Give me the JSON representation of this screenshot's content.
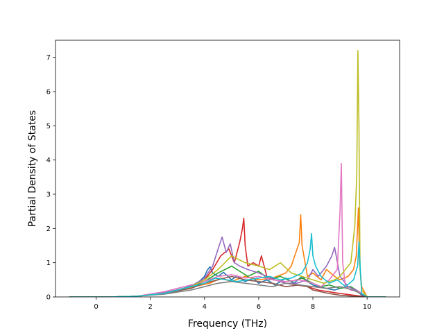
{
  "chart_data": {
    "type": "line",
    "title": "",
    "xlabel": "Frequency (THz)",
    "ylabel": "Partial Density of States",
    "xlim": [
      -1.5,
      11.2
    ],
    "ylim": [
      0,
      7.5
    ],
    "xticks": [
      0,
      2,
      4,
      6,
      8,
      10
    ],
    "yticks": [
      0,
      1,
      2,
      3,
      4,
      5,
      6,
      7
    ],
    "grid": false,
    "legend": "none",
    "series": [
      {
        "color": "#1f77b4",
        "x": [
          -1.0,
          0.5,
          1.5,
          2.5,
          3.0,
          3.5,
          3.8,
          4.0,
          4.1,
          4.2,
          4.3,
          4.5,
          4.7,
          5.0,
          5.2,
          5.5,
          5.8,
          6.0,
          6.3,
          6.6,
          7.0,
          7.3,
          7.6,
          7.8,
          8.0,
          8.2,
          8.5,
          8.8,
          9.0,
          9.3,
          9.6,
          9.8,
          10.0,
          10.7
        ],
        "y": [
          0,
          0,
          0.02,
          0.12,
          0.2,
          0.32,
          0.45,
          0.6,
          0.78,
          0.88,
          0.7,
          0.6,
          0.72,
          0.5,
          0.62,
          0.45,
          0.55,
          0.4,
          0.5,
          0.35,
          0.55,
          0.4,
          0.6,
          0.45,
          0.35,
          0.3,
          0.25,
          0.2,
          0.25,
          0.3,
          0.2,
          0.05,
          0,
          0
        ]
      },
      {
        "color": "#ff7f0e",
        "x": [
          -1.0,
          0.5,
          1.5,
          2.5,
          3.5,
          4.2,
          4.6,
          5.0,
          5.5,
          6.0,
          6.5,
          7.0,
          7.2,
          7.5,
          7.55,
          7.6,
          7.8,
          8.0,
          8.3,
          8.5,
          8.8,
          9.0,
          9.3,
          9.5,
          9.6,
          9.68,
          9.72,
          9.8,
          10.0,
          10.7
        ],
        "y": [
          0,
          0,
          0.02,
          0.1,
          0.28,
          0.4,
          0.55,
          0.45,
          0.6,
          0.5,
          0.55,
          0.7,
          0.9,
          1.6,
          2.4,
          1.5,
          0.6,
          0.7,
          0.5,
          0.8,
          0.6,
          0.5,
          0.6,
          0.8,
          1.2,
          2.6,
          1.0,
          0.3,
          0,
          0
        ]
      },
      {
        "color": "#2ca02c",
        "x": [
          -1.0,
          0.5,
          1.5,
          2.5,
          3.5,
          4.0,
          4.5,
          5.0,
          5.3,
          5.6,
          6.0,
          6.4,
          6.8,
          7.2,
          7.6,
          8.0,
          8.3,
          8.6,
          9.0,
          9.4,
          9.7,
          10.0,
          10.7
        ],
        "y": [
          0,
          0,
          0.02,
          0.1,
          0.3,
          0.45,
          0.7,
          0.9,
          0.75,
          0.6,
          0.75,
          0.5,
          0.6,
          0.45,
          0.55,
          0.4,
          0.3,
          0.35,
          0.25,
          0.3,
          0.15,
          0,
          0
        ]
      },
      {
        "color": "#d62728",
        "x": [
          -1.0,
          0.5,
          1.5,
          2.5,
          3.5,
          4.0,
          4.3,
          4.6,
          4.9,
          5.1,
          5.3,
          5.4,
          5.45,
          5.5,
          5.6,
          5.8,
          6.0,
          6.1,
          6.3,
          6.6,
          7.0,
          7.4,
          7.8,
          8.2,
          8.6,
          9.0,
          9.5,
          10.0,
          10.7
        ],
        "y": [
          0,
          0,
          0.02,
          0.1,
          0.3,
          0.5,
          0.8,
          1.2,
          1.4,
          1.0,
          1.6,
          2.0,
          2.3,
          1.5,
          0.9,
          1.0,
          0.9,
          1.2,
          0.6,
          0.5,
          0.4,
          0.35,
          0.3,
          0.2,
          0.15,
          0.1,
          0.05,
          0,
          0
        ]
      },
      {
        "color": "#9467bd",
        "x": [
          -1.0,
          0.5,
          1.5,
          2.5,
          3.5,
          4.0,
          4.3,
          4.5,
          4.65,
          4.8,
          4.95,
          5.1,
          5.3,
          5.6,
          6.0,
          6.3,
          6.6,
          7.0,
          7.4,
          7.8,
          8.0,
          8.2,
          8.5,
          8.7,
          8.8,
          9.0,
          9.3,
          9.6,
          10.0,
          10.7
        ],
        "y": [
          0,
          0,
          0.02,
          0.12,
          0.3,
          0.55,
          0.9,
          1.4,
          1.75,
          1.3,
          1.55,
          1.0,
          0.9,
          0.8,
          0.7,
          0.6,
          0.5,
          0.4,
          0.4,
          0.5,
          0.8,
          0.6,
          0.9,
          1.2,
          1.45,
          0.6,
          0.3,
          0.2,
          0,
          0
        ]
      },
      {
        "color": "#8c564b",
        "x": [
          -1.0,
          0.5,
          1.5,
          2.5,
          3.5,
          4.0,
          4.5,
          5.0,
          5.5,
          6.0,
          6.5,
          7.0,
          7.5,
          7.8,
          8.0,
          8.3,
          8.6,
          9.0,
          9.5,
          10.0,
          10.7
        ],
        "y": [
          0,
          0,
          0.02,
          0.1,
          0.25,
          0.4,
          0.5,
          0.6,
          0.5,
          0.45,
          0.4,
          0.3,
          0.35,
          0.3,
          0.2,
          0.15,
          0.1,
          0.05,
          0.02,
          0,
          0
        ]
      },
      {
        "color": "#e377c2",
        "x": [
          -1.0,
          0.5,
          1.5,
          2.5,
          3.5,
          4.0,
          4.5,
          5.0,
          5.5,
          6.0,
          6.5,
          7.0,
          7.5,
          8.0,
          8.3,
          8.6,
          8.9,
          9.0,
          9.05,
          9.1,
          9.2,
          9.4,
          9.7,
          10.0,
          10.7
        ],
        "y": [
          0,
          0,
          0.02,
          0.15,
          0.35,
          0.45,
          0.6,
          0.65,
          0.55,
          0.6,
          0.5,
          0.45,
          0.5,
          0.4,
          0.3,
          0.5,
          0.8,
          2.5,
          3.9,
          1.0,
          0.3,
          0.2,
          0.15,
          0,
          0
        ]
      },
      {
        "color": "#7f7f7f",
        "x": [
          -1.0,
          0.5,
          1.5,
          2.5,
          3.5,
          4.0,
          4.5,
          5.0,
          5.5,
          6.0,
          6.5,
          7.0,
          7.5,
          8.0,
          8.5,
          9.0,
          9.5,
          10.0,
          10.7
        ],
        "y": [
          0,
          0,
          0.02,
          0.08,
          0.2,
          0.3,
          0.4,
          0.45,
          0.4,
          0.35,
          0.3,
          0.4,
          0.35,
          0.3,
          0.25,
          0.3,
          0.2,
          0,
          0
        ]
      },
      {
        "color": "#bcbd22",
        "x": [
          -1.0,
          0.5,
          1.5,
          2.5,
          3.5,
          4.0,
          4.5,
          5.0,
          5.5,
          6.0,
          6.4,
          6.8,
          7.2,
          7.6,
          8.0,
          8.4,
          8.8,
          9.0,
          9.2,
          9.4,
          9.55,
          9.62,
          9.66,
          9.7,
          9.74,
          9.8,
          10.0,
          10.7
        ],
        "y": [
          0,
          0,
          0.02,
          0.1,
          0.3,
          0.5,
          0.8,
          1.2,
          1.0,
          0.9,
          0.8,
          1.0,
          0.7,
          0.6,
          0.5,
          0.4,
          0.5,
          0.6,
          0.8,
          1.0,
          2.1,
          3.6,
          7.2,
          5.0,
          0.8,
          0.2,
          0,
          0
        ]
      },
      {
        "color": "#17becf",
        "x": [
          -1.0,
          0.5,
          1.5,
          2.5,
          3.5,
          4.0,
          4.4,
          4.8,
          5.2,
          5.6,
          6.0,
          6.4,
          6.8,
          7.2,
          7.6,
          7.8,
          7.9,
          7.95,
          8.0,
          8.1,
          8.3,
          8.6,
          8.9,
          9.2,
          9.5,
          9.65,
          9.7,
          9.75,
          9.8,
          10.0,
          10.7
        ],
        "y": [
          0,
          0,
          0.02,
          0.1,
          0.3,
          0.4,
          0.55,
          0.5,
          0.45,
          0.5,
          0.55,
          0.6,
          0.5,
          0.55,
          0.7,
          1.0,
          1.4,
          1.85,
          1.2,
          0.9,
          0.6,
          0.4,
          0.5,
          0.3,
          0.5,
          0.9,
          1.6,
          0.8,
          0.1,
          0,
          0
        ]
      }
    ]
  }
}
